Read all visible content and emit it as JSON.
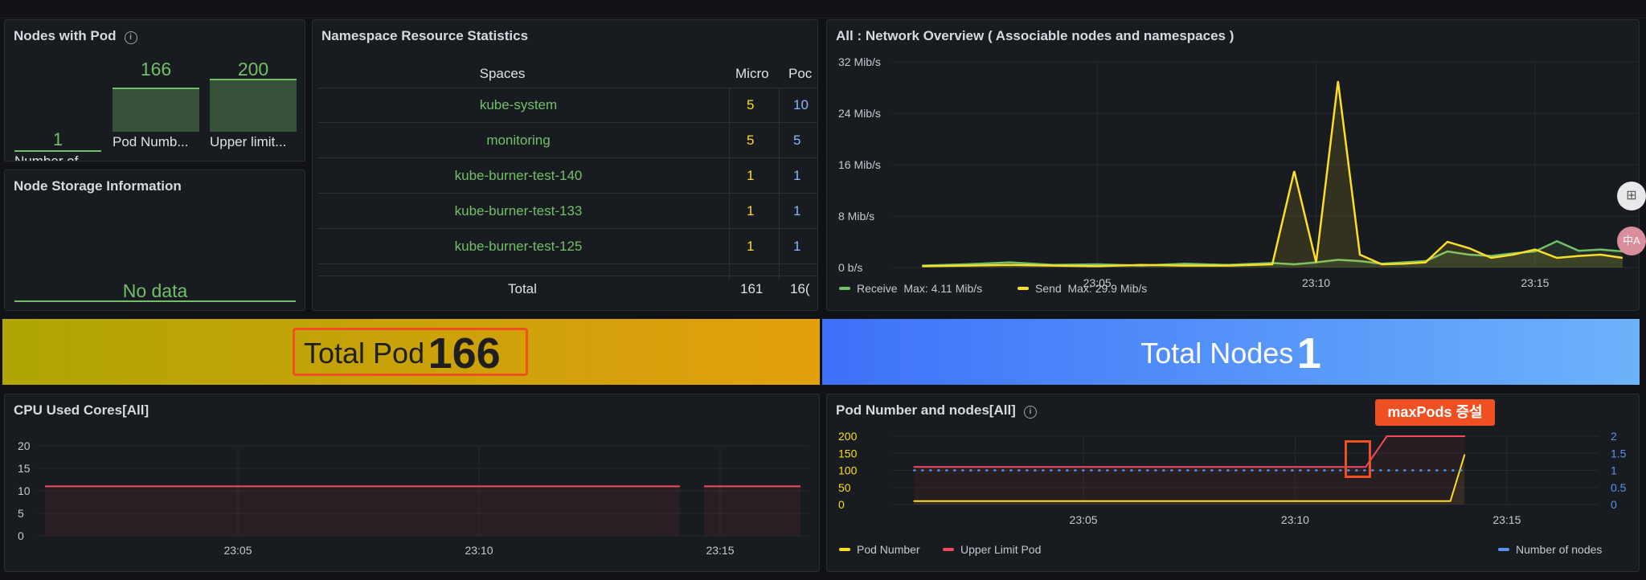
{
  "colors": {
    "green": "#73bf69",
    "yellow": "#fade2a",
    "red": "#f2495c",
    "blue": "#5794f2",
    "callout": "#f04f22",
    "pod_gradient_start": "#afa504",
    "pod_gradient_end": "#e39f0c",
    "nodes_gradient_start": "#3d71f9",
    "nodes_gradient_end": "#6cb3fb"
  },
  "nodes_with_pod": {
    "title": "Nodes with Pod",
    "info_icon": "info-icon",
    "stats": [
      {
        "value": "1",
        "label": "Number of ...",
        "fraction": 0.005
      },
      {
        "value": "166",
        "label": "Pod Numb...",
        "fraction": 0.83
      },
      {
        "value": "200",
        "label": "Upper limit...",
        "fraction": 1.0
      }
    ]
  },
  "node_storage": {
    "title": "Node Storage Information",
    "no_data": "No data"
  },
  "namespace_stats": {
    "title": "Namespace Resource Statistics",
    "headers": [
      "Spaces",
      "Micro",
      "Poc"
    ],
    "rows": [
      {
        "space": "kube-system",
        "micro": "5",
        "pods": "10"
      },
      {
        "space": "monitoring",
        "micro": "5",
        "pods": "5"
      },
      {
        "space": "kube-burner-test-140",
        "micro": "1",
        "pods": "1"
      },
      {
        "space": "kube-burner-test-133",
        "micro": "1",
        "pods": "1"
      },
      {
        "space": "kube-burner-test-125",
        "micro": "1",
        "pods": "1"
      }
    ],
    "total": {
      "label": "Total",
      "micro": "161",
      "pods": "16("
    }
  },
  "network_overview": {
    "title": "All : Network Overview ( Associable nodes and namespaces )",
    "legend": [
      {
        "name": "Receive",
        "stat": "Max: 4.11 Mib/s",
        "color": "#73bf69"
      },
      {
        "name": "Send",
        "stat": "Max: 29.9 Mib/s",
        "color": "#fade2a"
      }
    ]
  },
  "total_pod": {
    "label": "Total Pod",
    "value": "166"
  },
  "total_nodes": {
    "label": "Total Nodes",
    "value": "1"
  },
  "cpu_used": {
    "title": "CPU Used Cores[All]"
  },
  "pod_nodes": {
    "title": "Pod Number and nodes[All]",
    "callout": "maxPods 증설",
    "legend": [
      {
        "name": "Pod Number",
        "color": "#fade2a"
      },
      {
        "name": "Upper Limit Pod",
        "color": "#f2495c"
      },
      {
        "name": "Number of nodes",
        "color": "#5794f2"
      }
    ]
  },
  "side_buttons": [
    {
      "icon": "apps-add-icon",
      "glyph": "⊞"
    },
    {
      "icon": "translate-icon",
      "glyph": "中A"
    }
  ],
  "chart_data": [
    {
      "type": "line",
      "title": "All : Network Overview ( Associable nodes and namespaces )",
      "x_ticks": [
        "23:05",
        "23:10",
        "23:15"
      ],
      "y_ticks": [
        "0 b/s",
        "8 Mib/s",
        "16 Mib/s",
        "24 Mib/s",
        "32 Mib/s"
      ],
      "ylim": [
        0,
        32
      ],
      "y_unit": "Mib/s",
      "x": [
        "23:01",
        "23:02",
        "23:03",
        "23:04",
        "23:05",
        "23:06",
        "23:07",
        "23:08",
        "23:09",
        "23:09:30",
        "23:10",
        "23:10:30",
        "23:11",
        "23:11:30",
        "23:12",
        "23:12:30",
        "23:13",
        "23:13:30",
        "23:14",
        "23:14:30",
        "23:15",
        "23:15:30",
        "23:16",
        "23:16:30",
        "23:17"
      ],
      "series": [
        {
          "name": "Receive",
          "values": [
            0.3,
            0.5,
            0.8,
            0.4,
            0.5,
            0.3,
            0.6,
            0.4,
            0.7,
            0.5,
            0.8,
            1.2,
            1.0,
            0.6,
            0.8,
            1.0,
            2.5,
            2.0,
            1.8,
            2.2,
            2.5,
            4.1,
            2.6,
            2.8,
            2.5
          ]
        },
        {
          "name": "Send",
          "values": [
            0.2,
            0.3,
            0.4,
            0.3,
            0.2,
            0.4,
            0.3,
            0.3,
            0.5,
            15.0,
            0.8,
            29.0,
            2.0,
            0.5,
            0.6,
            0.8,
            4.0,
            3.0,
            1.5,
            2.0,
            2.8,
            1.5,
            1.8,
            2.0,
            1.5
          ]
        }
      ],
      "legend_position": "bottom-left"
    },
    {
      "type": "area",
      "title": "CPU Used Cores[All]",
      "x_ticks": [
        "23:05",
        "23:10",
        "23:15"
      ],
      "y_ticks": [
        "0",
        "5",
        "10",
        "15",
        "20"
      ],
      "ylim": [
        0,
        20
      ],
      "x": [
        "23:01",
        "23:14:10",
        "23:14:40",
        "23:16:40"
      ],
      "series": [
        {
          "values": [
            11,
            11,
            null,
            11
          ],
          "color": "#f2495c"
        }
      ]
    },
    {
      "type": "line",
      "title": "Pod Number and nodes[All]",
      "x_ticks": [
        "23:05",
        "23:10",
        "23:15"
      ],
      "y_ticks_left": [
        "0",
        "50",
        "100",
        "150",
        "200"
      ],
      "y_ticks_right": [
        "0",
        "0.5",
        "1",
        "1.5",
        "2"
      ],
      "ylim_left": [
        0,
        200
      ],
      "ylim_right": [
        0,
        2
      ],
      "x": [
        "23:01",
        "23:11:40",
        "23:12:10",
        "23:12:30",
        "23:13",
        "23:13:40",
        "23:14",
        "23:14:20",
        "23:14:40",
        "23:17"
      ],
      "series": [
        {
          "name": "Pod Number",
          "axis": "left",
          "values": [
            10,
            10,
            10,
            10,
            10,
            10,
            145,
            166,
            166,
            166
          ]
        },
        {
          "name": "Upper Limit Pod",
          "axis": "left",
          "values": [
            110,
            110,
            200,
            200,
            200,
            200,
            200,
            200,
            200,
            200
          ]
        },
        {
          "name": "Number of nodes",
          "axis": "right",
          "values": [
            1,
            1,
            1,
            1,
            1,
            1,
            1,
            1,
            1,
            1
          ]
        }
      ],
      "legend_position": "bottom"
    }
  ]
}
